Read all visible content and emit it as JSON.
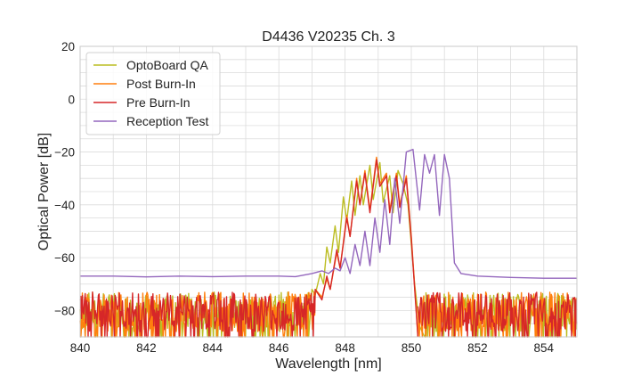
{
  "chart_data": {
    "type": "line",
    "title": "D4436 V20235 Ch. 3",
    "xlabel": "Wavelength [nm]",
    "ylabel": "Optical Power [dB]",
    "xlim": [
      840,
      855
    ],
    "ylim": [
      -90,
      20
    ],
    "xticks": [
      "840",
      "842",
      "844",
      "846",
      "848",
      "850",
      "852",
      "854"
    ],
    "yticks": [
      "20",
      "0",
      "−20",
      "−40",
      "−60",
      "−80"
    ],
    "grid": true,
    "legend_position": "top-left",
    "noise_floor": {
      "max": -73,
      "min": -90
    },
    "series": [
      {
        "name": "OptoBoard QA",
        "color": "#bcbd22",
        "noise_x_range": [
          840,
          846.9
        ],
        "noise2_x_range": [
          850.4,
          855
        ],
        "points": [
          [
            846.9,
            -90
          ],
          [
            847.0,
            -72
          ],
          [
            847.1,
            -74
          ],
          [
            847.25,
            -66
          ],
          [
            847.35,
            -70
          ],
          [
            847.45,
            -56
          ],
          [
            847.55,
            -62
          ],
          [
            847.7,
            -48
          ],
          [
            847.8,
            -58
          ],
          [
            847.95,
            -37
          ],
          [
            848.05,
            -46
          ],
          [
            848.2,
            -31
          ],
          [
            848.3,
            -44
          ],
          [
            848.45,
            -29
          ],
          [
            848.55,
            -40
          ],
          [
            848.75,
            -25
          ],
          [
            848.85,
            -38
          ],
          [
            849.05,
            -24
          ],
          [
            849.15,
            -39
          ],
          [
            849.35,
            -29
          ],
          [
            849.45,
            -43
          ],
          [
            849.6,
            -27
          ],
          [
            849.75,
            -32
          ],
          [
            849.9,
            -40
          ],
          [
            850.1,
            -70
          ],
          [
            850.25,
            -86
          ],
          [
            850.4,
            -90
          ]
        ]
      },
      {
        "name": "Post Burn-In",
        "color": "#ff7f0e",
        "noise_x_range": [
          840,
          847.1
        ],
        "noise2_x_range": [
          850.2,
          855
        ],
        "points": [
          [
            847.1,
            -72
          ],
          [
            847.3,
            -75
          ],
          [
            847.45,
            -68
          ],
          [
            847.55,
            -72
          ],
          [
            847.75,
            -58
          ],
          [
            847.85,
            -64
          ],
          [
            848.05,
            -44
          ],
          [
            848.15,
            -52
          ],
          [
            848.35,
            -30
          ],
          [
            848.45,
            -40
          ],
          [
            848.6,
            -27
          ],
          [
            848.75,
            -42
          ],
          [
            848.95,
            -22
          ],
          [
            849.05,
            -32
          ],
          [
            849.25,
            -28
          ],
          [
            849.35,
            -42
          ],
          [
            849.55,
            -28
          ],
          [
            849.65,
            -40
          ],
          [
            849.85,
            -29
          ],
          [
            850.0,
            -52
          ],
          [
            850.15,
            -80
          ],
          [
            850.2,
            -90
          ]
        ]
      },
      {
        "name": "Pre Burn-In",
        "color": "#d62728",
        "noise_x_range": [
          840,
          847.1
        ],
        "noise2_x_range": [
          850.2,
          855
        ],
        "points": [
          [
            847.1,
            -72
          ],
          [
            847.3,
            -76
          ],
          [
            847.45,
            -67
          ],
          [
            847.55,
            -72
          ],
          [
            847.75,
            -57
          ],
          [
            847.85,
            -64
          ],
          [
            848.05,
            -45
          ],
          [
            848.15,
            -52
          ],
          [
            848.35,
            -31
          ],
          [
            848.45,
            -40
          ],
          [
            848.6,
            -28
          ],
          [
            848.75,
            -43
          ],
          [
            848.95,
            -23
          ],
          [
            849.05,
            -33
          ],
          [
            849.25,
            -29
          ],
          [
            849.35,
            -43
          ],
          [
            849.55,
            -29
          ],
          [
            849.65,
            -41
          ],
          [
            849.85,
            -30
          ],
          [
            850.0,
            -53
          ],
          [
            850.15,
            -81
          ],
          [
            850.2,
            -90
          ]
        ]
      },
      {
        "name": "Reception Test",
        "color": "#9467bd",
        "points": [
          [
            840,
            -67
          ],
          [
            841,
            -67
          ],
          [
            842,
            -67.3
          ],
          [
            843,
            -67
          ],
          [
            844,
            -67.2
          ],
          [
            845,
            -67
          ],
          [
            846,
            -67
          ],
          [
            846.5,
            -67.2
          ],
          [
            847,
            -66
          ],
          [
            847.3,
            -65
          ],
          [
            847.5,
            -66
          ],
          [
            847.7,
            -64
          ],
          [
            847.85,
            -65
          ],
          [
            848.0,
            -60
          ],
          [
            848.15,
            -66
          ],
          [
            848.3,
            -55
          ],
          [
            848.45,
            -63
          ],
          [
            848.6,
            -50
          ],
          [
            848.75,
            -63
          ],
          [
            848.9,
            -45
          ],
          [
            849.05,
            -58
          ],
          [
            849.2,
            -38
          ],
          [
            849.35,
            -55
          ],
          [
            849.5,
            -30
          ],
          [
            849.65,
            -47
          ],
          [
            849.85,
            -20
          ],
          [
            850.05,
            -19
          ],
          [
            850.25,
            -42
          ],
          [
            850.4,
            -21
          ],
          [
            850.55,
            -28
          ],
          [
            850.7,
            -21
          ],
          [
            850.85,
            -44
          ],
          [
            851.0,
            -21
          ],
          [
            851.15,
            -30
          ],
          [
            851.3,
            -62
          ],
          [
            851.5,
            -66
          ],
          [
            852,
            -67
          ],
          [
            853,
            -67.5
          ],
          [
            854,
            -67.8
          ],
          [
            855,
            -67.8
          ]
        ]
      }
    ]
  }
}
